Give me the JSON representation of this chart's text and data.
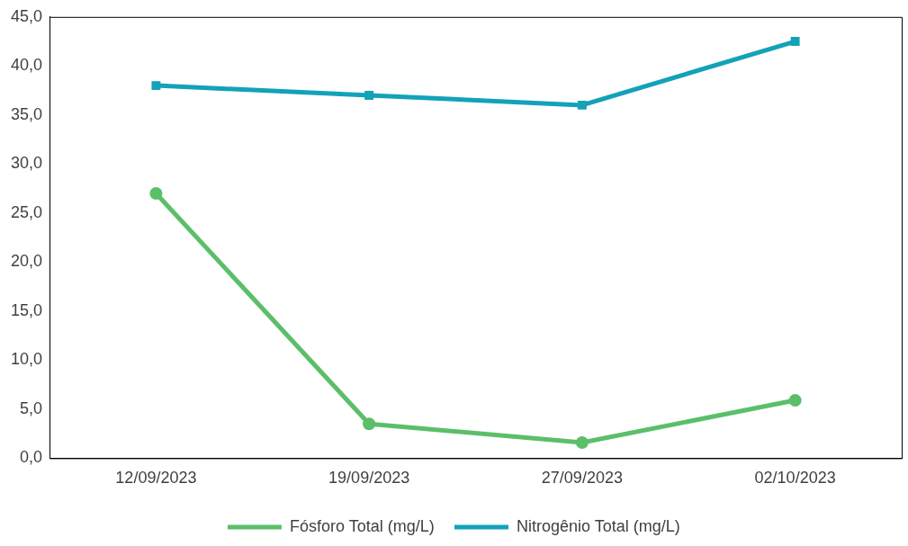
{
  "chart_data": {
    "type": "line",
    "categories": [
      "12/09/2023",
      "19/09/2023",
      "27/09/2023",
      "02/10/2023"
    ],
    "series": [
      {
        "name": "Fósforo Total (mg/L)",
        "color": "#5bbf6a",
        "marker": "circle",
        "values": [
          27.0,
          3.5,
          1.6,
          5.9
        ]
      },
      {
        "name": "Nitrogênio Total (mg/L)",
        "color": "#13a2b8",
        "marker": "square",
        "values": [
          38.0,
          37.0,
          36.0,
          42.5
        ]
      }
    ],
    "ylim": [
      0,
      45
    ],
    "yticks": [
      {
        "value": 0,
        "label": "0,0"
      },
      {
        "value": 5,
        "label": "5,0"
      },
      {
        "value": 10,
        "label": "10,0"
      },
      {
        "value": 15,
        "label": "15,0"
      },
      {
        "value": 20,
        "label": "20,0"
      },
      {
        "value": 25,
        "label": "25,0"
      },
      {
        "value": 30,
        "label": "30,0"
      },
      {
        "value": 35,
        "label": "35,0"
      },
      {
        "value": 40,
        "label": "40,0"
      },
      {
        "value": 45,
        "label": "45,0"
      }
    ],
    "grid": false,
    "legend": "bottom",
    "line_style": "solid"
  }
}
